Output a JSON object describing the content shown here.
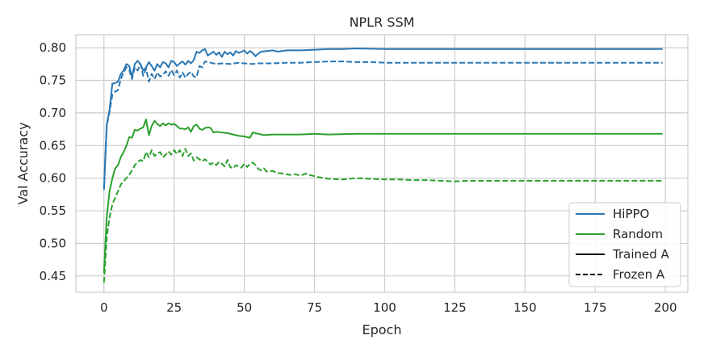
{
  "chart_data": {
    "type": "line",
    "title": "NPLR SSM",
    "xlabel": "Epoch",
    "ylabel": "Val Accuracy",
    "xlim": [
      -10,
      208
    ],
    "ylim": [
      0.425,
      0.82
    ],
    "x_ticks": [
      0,
      25,
      50,
      75,
      100,
      125,
      150,
      175,
      200
    ],
    "y_ticks": [
      0.45,
      0.5,
      0.55,
      0.6,
      0.65,
      0.7,
      0.75,
      0.8
    ],
    "x_tick_labels": [
      "0",
      "25",
      "50",
      "75",
      "100",
      "125",
      "150",
      "175",
      "200"
    ],
    "y_tick_labels": [
      "0.45",
      "0.50",
      "0.55",
      "0.60",
      "0.65",
      "0.70",
      "0.75",
      "0.80"
    ],
    "grid": true,
    "legend_position": "lower-right",
    "colors": {
      "HiPPO": "#2a77b4",
      "Random": "#2ca02c",
      "style_key": "#000000",
      "grid": "#cccccc",
      "frame": "#cccccc"
    },
    "legend": [
      {
        "label": "HiPPO",
        "kind": "color",
        "color_key": "HiPPO"
      },
      {
        "label": "Random",
        "kind": "color",
        "color_key": "Random"
      },
      {
        "label": "Trained A",
        "kind": "style",
        "dash": "solid"
      },
      {
        "label": "Frozen A",
        "kind": "style",
        "dash": "dashed"
      }
    ],
    "series": [
      {
        "group": "HiPPO",
        "style": "solid",
        "points": [
          [
            0,
            0.582
          ],
          [
            1,
            0.682
          ],
          [
            2,
            0.705
          ],
          [
            3,
            0.745
          ],
          [
            4,
            0.746
          ],
          [
            5,
            0.748
          ],
          [
            6,
            0.76
          ],
          [
            7,
            0.765
          ],
          [
            8,
            0.775
          ],
          [
            9,
            0.772
          ],
          [
            10,
            0.755
          ],
          [
            11,
            0.775
          ],
          [
            12,
            0.78
          ],
          [
            13,
            0.775
          ],
          [
            14,
            0.765
          ],
          [
            15,
            0.77
          ],
          [
            16,
            0.778
          ],
          [
            17,
            0.772
          ],
          [
            18,
            0.765
          ],
          [
            19,
            0.775
          ],
          [
            20,
            0.77
          ],
          [
            21,
            0.778
          ],
          [
            22,
            0.776
          ],
          [
            23,
            0.77
          ],
          [
            24,
            0.78
          ],
          [
            25,
            0.778
          ],
          [
            26,
            0.772
          ],
          [
            27,
            0.776
          ],
          [
            28,
            0.779
          ],
          [
            29,
            0.774
          ],
          [
            30,
            0.78
          ],
          [
            31,
            0.776
          ],
          [
            32,
            0.781
          ],
          [
            33,
            0.794
          ],
          [
            34,
            0.792
          ],
          [
            35,
            0.796
          ],
          [
            36,
            0.798
          ],
          [
            37,
            0.788
          ],
          [
            38,
            0.791
          ],
          [
            39,
            0.794
          ],
          [
            40,
            0.789
          ],
          [
            41,
            0.793
          ],
          [
            42,
            0.786
          ],
          [
            43,
            0.794
          ],
          [
            44,
            0.79
          ],
          [
            45,
            0.793
          ],
          [
            46,
            0.788
          ],
          [
            47,
            0.795
          ],
          [
            48,
            0.792
          ],
          [
            49,
            0.794
          ],
          [
            50,
            0.796
          ],
          [
            51,
            0.791
          ],
          [
            52,
            0.795
          ],
          [
            53,
            0.792
          ],
          [
            54,
            0.787
          ],
          [
            55,
            0.791
          ],
          [
            56,
            0.794
          ],
          [
            58,
            0.795
          ],
          [
            60,
            0.796
          ],
          [
            62,
            0.794
          ],
          [
            65,
            0.796
          ],
          [
            70,
            0.796
          ],
          [
            75,
            0.797
          ],
          [
            80,
            0.798
          ],
          [
            85,
            0.798
          ],
          [
            90,
            0.799
          ],
          [
            100,
            0.798
          ],
          [
            110,
            0.798
          ],
          [
            120,
            0.798
          ],
          [
            140,
            0.798
          ],
          [
            160,
            0.798
          ],
          [
            180,
            0.798
          ],
          [
            199,
            0.798
          ]
        ]
      },
      {
        "group": "HiPPO",
        "style": "dashed",
        "points": [
          [
            0,
            0.585
          ],
          [
            1,
            0.68
          ],
          [
            2,
            0.702
          ],
          [
            3,
            0.728
          ],
          [
            4,
            0.733
          ],
          [
            5,
            0.735
          ],
          [
            6,
            0.752
          ],
          [
            7,
            0.762
          ],
          [
            8,
            0.77
          ],
          [
            9,
            0.766
          ],
          [
            10,
            0.752
          ],
          [
            11,
            0.77
          ],
          [
            12,
            0.765
          ],
          [
            13,
            0.775
          ],
          [
            14,
            0.757
          ],
          [
            15,
            0.768
          ],
          [
            16,
            0.748
          ],
          [
            17,
            0.76
          ],
          [
            18,
            0.752
          ],
          [
            19,
            0.762
          ],
          [
            20,
            0.756
          ],
          [
            21,
            0.758
          ],
          [
            22,
            0.764
          ],
          [
            23,
            0.757
          ],
          [
            24,
            0.766
          ],
          [
            25,
            0.758
          ],
          [
            26,
            0.765
          ],
          [
            27,
            0.754
          ],
          [
            28,
            0.762
          ],
          [
            29,
            0.754
          ],
          [
            30,
            0.76
          ],
          [
            31,
            0.763
          ],
          [
            32,
            0.756
          ],
          [
            33,
            0.755
          ],
          [
            34,
            0.772
          ],
          [
            35,
            0.77
          ],
          [
            36,
            0.779
          ],
          [
            38,
            0.777
          ],
          [
            40,
            0.775
          ],
          [
            42,
            0.776
          ],
          [
            45,
            0.775
          ],
          [
            48,
            0.777
          ],
          [
            50,
            0.776
          ],
          [
            53,
            0.775
          ],
          [
            55,
            0.776
          ],
          [
            60,
            0.776
          ],
          [
            65,
            0.777
          ],
          [
            70,
            0.777
          ],
          [
            75,
            0.778
          ],
          [
            80,
            0.779
          ],
          [
            85,
            0.779
          ],
          [
            90,
            0.778
          ],
          [
            95,
            0.778
          ],
          [
            100,
            0.777
          ],
          [
            110,
            0.777
          ],
          [
            120,
            0.777
          ],
          [
            130,
            0.777
          ],
          [
            140,
            0.777
          ],
          [
            150,
            0.777
          ],
          [
            170,
            0.777
          ],
          [
            199,
            0.777
          ]
        ]
      },
      {
        "group": "Random",
        "style": "solid",
        "points": [
          [
            0,
            0.455
          ],
          [
            1,
            0.54
          ],
          [
            2,
            0.58
          ],
          [
            3,
            0.6
          ],
          [
            4,
            0.615
          ],
          [
            5,
            0.62
          ],
          [
            6,
            0.632
          ],
          [
            7,
            0.64
          ],
          [
            8,
            0.65
          ],
          [
            9,
            0.663
          ],
          [
            10,
            0.662
          ],
          [
            11,
            0.674
          ],
          [
            12,
            0.673
          ],
          [
            13,
            0.676
          ],
          [
            14,
            0.678
          ],
          [
            15,
            0.69
          ],
          [
            16,
            0.666
          ],
          [
            17,
            0.68
          ],
          [
            18,
            0.688
          ],
          [
            19,
            0.683
          ],
          [
            20,
            0.68
          ],
          [
            21,
            0.684
          ],
          [
            22,
            0.681
          ],
          [
            23,
            0.684
          ],
          [
            24,
            0.682
          ],
          [
            25,
            0.683
          ],
          [
            26,
            0.68
          ],
          [
            27,
            0.676
          ],
          [
            28,
            0.676
          ],
          [
            29,
            0.675
          ],
          [
            30,
            0.678
          ],
          [
            31,
            0.671
          ],
          [
            32,
            0.68
          ],
          [
            33,
            0.682
          ],
          [
            34,
            0.676
          ],
          [
            35,
            0.674
          ],
          [
            36,
            0.677
          ],
          [
            37,
            0.678
          ],
          [
            38,
            0.677
          ],
          [
            39,
            0.67
          ],
          [
            40,
            0.671
          ],
          [
            42,
            0.67
          ],
          [
            44,
            0.669
          ],
          [
            46,
            0.667
          ],
          [
            48,
            0.665
          ],
          [
            50,
            0.664
          ],
          [
            52,
            0.662
          ],
          [
            53,
            0.67
          ],
          [
            55,
            0.668
          ],
          [
            57,
            0.666
          ],
          [
            60,
            0.667
          ],
          [
            65,
            0.667
          ],
          [
            70,
            0.667
          ],
          [
            75,
            0.668
          ],
          [
            80,
            0.667
          ],
          [
            90,
            0.668
          ],
          [
            100,
            0.668
          ],
          [
            120,
            0.668
          ],
          [
            140,
            0.668
          ],
          [
            160,
            0.668
          ],
          [
            180,
            0.668
          ],
          [
            199,
            0.668
          ]
        ]
      },
      {
        "group": "Random",
        "style": "dashed",
        "points": [
          [
            0,
            0.44
          ],
          [
            1,
            0.51
          ],
          [
            2,
            0.54
          ],
          [
            3,
            0.56
          ],
          [
            4,
            0.57
          ],
          [
            5,
            0.58
          ],
          [
            6,
            0.59
          ],
          [
            7,
            0.595
          ],
          [
            8,
            0.6
          ],
          [
            9,
            0.605
          ],
          [
            10,
            0.612
          ],
          [
            11,
            0.62
          ],
          [
            12,
            0.625
          ],
          [
            13,
            0.628
          ],
          [
            14,
            0.626
          ],
          [
            15,
            0.64
          ],
          [
            16,
            0.632
          ],
          [
            17,
            0.643
          ],
          [
            18,
            0.634
          ],
          [
            19,
            0.638
          ],
          [
            20,
            0.64
          ],
          [
            21,
            0.632
          ],
          [
            22,
            0.636
          ],
          [
            23,
            0.641
          ],
          [
            24,
            0.636
          ],
          [
            25,
            0.643
          ],
          [
            26,
            0.637
          ],
          [
            27,
            0.643
          ],
          [
            28,
            0.634
          ],
          [
            29,
            0.645
          ],
          [
            30,
            0.634
          ],
          [
            31,
            0.638
          ],
          [
            32,
            0.627
          ],
          [
            33,
            0.632
          ],
          [
            34,
            0.629
          ],
          [
            35,
            0.626
          ],
          [
            36,
            0.629
          ],
          [
            37,
            0.625
          ],
          [
            38,
            0.621
          ],
          [
            39,
            0.624
          ],
          [
            40,
            0.62
          ],
          [
            41,
            0.625
          ],
          [
            42,
            0.622
          ],
          [
            43,
            0.618
          ],
          [
            44,
            0.628
          ],
          [
            45,
            0.617
          ],
          [
            46,
            0.615
          ],
          [
            47,
            0.62
          ],
          [
            48,
            0.618
          ],
          [
            49,
            0.616
          ],
          [
            50,
            0.622
          ],
          [
            51,
            0.617
          ],
          [
            52,
            0.622
          ],
          [
            53,
            0.624
          ],
          [
            54,
            0.62
          ],
          [
            55,
            0.614
          ],
          [
            56,
            0.612
          ],
          [
            57,
            0.615
          ],
          [
            58,
            0.61
          ],
          [
            60,
            0.611
          ],
          [
            62,
            0.608
          ],
          [
            64,
            0.607
          ],
          [
            66,
            0.605
          ],
          [
            68,
            0.606
          ],
          [
            70,
            0.604
          ],
          [
            72,
            0.607
          ],
          [
            74,
            0.604
          ],
          [
            76,
            0.602
          ],
          [
            80,
            0.599
          ],
          [
            85,
            0.598
          ],
          [
            90,
            0.6
          ],
          [
            95,
            0.599
          ],
          [
            100,
            0.598
          ],
          [
            105,
            0.598
          ],
          [
            110,
            0.597
          ],
          [
            115,
            0.597
          ],
          [
            120,
            0.596
          ],
          [
            125,
            0.595
          ],
          [
            130,
            0.596
          ],
          [
            140,
            0.596
          ],
          [
            150,
            0.596
          ],
          [
            160,
            0.596
          ],
          [
            170,
            0.596
          ],
          [
            180,
            0.596
          ],
          [
            199,
            0.596
          ]
        ]
      }
    ]
  }
}
